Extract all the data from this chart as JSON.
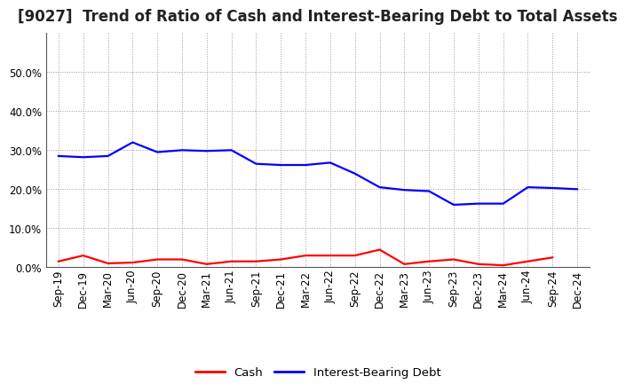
{
  "title": "[9027]  Trend of Ratio of Cash and Interest-Bearing Debt to Total Assets",
  "x_labels": [
    "Sep-19",
    "Dec-19",
    "Mar-20",
    "Jun-20",
    "Sep-20",
    "Dec-20",
    "Mar-21",
    "Jun-21",
    "Sep-21",
    "Dec-21",
    "Mar-22",
    "Jun-22",
    "Sep-22",
    "Dec-22",
    "Mar-23",
    "Jun-23",
    "Sep-23",
    "Dec-23",
    "Mar-24",
    "Jun-24",
    "Sep-24",
    "Dec-24"
  ],
  "cash": [
    0.015,
    0.03,
    0.01,
    0.012,
    0.02,
    0.02,
    0.008,
    0.015,
    0.015,
    0.02,
    0.03,
    0.03,
    0.03,
    0.045,
    0.008,
    0.015,
    0.02,
    0.008,
    0.005,
    0.015,
    0.025,
    null
  ],
  "ibd": [
    0.285,
    0.282,
    0.285,
    0.32,
    0.295,
    0.3,
    0.298,
    0.3,
    0.265,
    0.262,
    0.262,
    0.268,
    0.24,
    0.205,
    0.198,
    0.195,
    0.16,
    0.163,
    0.163,
    0.205,
    0.203,
    0.2
  ],
  "cash_color": "#ff0000",
  "ibd_color": "#0000ff",
  "bg_color": "#ffffff",
  "grid_color": "#999999",
  "ylim": [
    0.0,
    0.6
  ],
  "yticks": [
    0.0,
    0.1,
    0.2,
    0.3,
    0.4,
    0.5
  ],
  "legend_cash": "Cash",
  "legend_ibd": "Interest-Bearing Debt",
  "title_fontsize": 12,
  "tick_fontsize": 8.5,
  "legend_fontsize": 9.5,
  "line_width": 1.6
}
